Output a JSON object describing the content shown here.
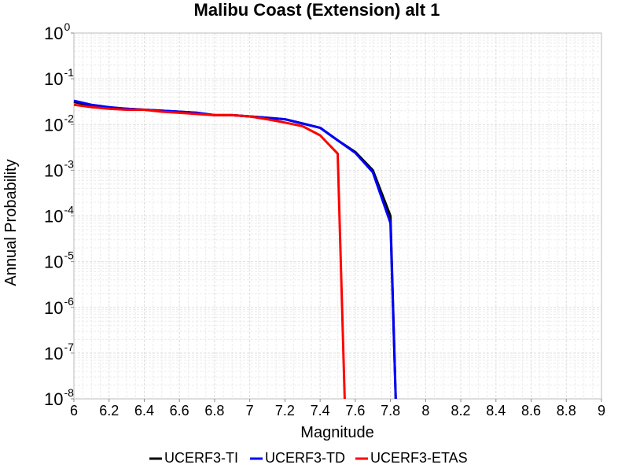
{
  "chart_data": {
    "type": "line",
    "title": "Malibu Coast (Extension) alt 1",
    "xlabel": "Magnitude",
    "ylabel": "Annual Probability",
    "xlim": [
      6,
      9
    ],
    "ylim": [
      1e-08,
      1
    ],
    "yscale": "log",
    "grid": true,
    "legend_position": "bottom",
    "x_ticks": [
      "6",
      "6.2",
      "6.4",
      "6.6",
      "6.8",
      "7",
      "7.2",
      "7.4",
      "7.6",
      "7.8",
      "8",
      "8.2",
      "8.4",
      "8.6",
      "8.8",
      "9"
    ],
    "y_ticks": [
      {
        "base": "10",
        "exp": "0",
        "value": 1
      },
      {
        "base": "10",
        "exp": "-1",
        "value": 0.1
      },
      {
        "base": "10",
        "exp": "-2",
        "value": 0.01
      },
      {
        "base": "10",
        "exp": "-3",
        "value": 0.001
      },
      {
        "base": "10",
        "exp": "-4",
        "value": 0.0001
      },
      {
        "base": "10",
        "exp": "-5",
        "value": 1e-05
      },
      {
        "base": "10",
        "exp": "-6",
        "value": 1e-06
      },
      {
        "base": "10",
        "exp": "-7",
        "value": 1e-07
      },
      {
        "base": "10",
        "exp": "-8",
        "value": 1e-08
      }
    ],
    "series": [
      {
        "name": "UCERF3-TI",
        "color": "#000000",
        "x": [
          6.0,
          6.1,
          6.2,
          6.3,
          6.4,
          6.5,
          6.6,
          6.7,
          6.8,
          6.9,
          7.0,
          7.1,
          7.2,
          7.3,
          7.4,
          7.5,
          7.6,
          7.7,
          7.8,
          7.83
        ],
        "y": [
          0.031,
          0.026,
          0.023,
          0.022,
          0.021,
          0.02,
          0.019,
          0.018,
          0.016,
          0.016,
          0.015,
          0.014,
          0.013,
          0.0105,
          0.0085,
          0.0045,
          0.0025,
          0.001,
          0.0001,
          1e-08
        ]
      },
      {
        "name": "UCERF3-TD",
        "color": "#0000ff",
        "x": [
          6.0,
          6.1,
          6.2,
          6.3,
          6.4,
          6.5,
          6.6,
          6.7,
          6.8,
          6.9,
          7.0,
          7.1,
          7.2,
          7.3,
          7.4,
          7.5,
          7.6,
          7.7,
          7.8,
          7.83
        ],
        "y": [
          0.033,
          0.027,
          0.024,
          0.022,
          0.021,
          0.02,
          0.019,
          0.018,
          0.016,
          0.016,
          0.015,
          0.014,
          0.013,
          0.0105,
          0.0085,
          0.0045,
          0.0024,
          0.0009,
          7e-05,
          1e-08
        ]
      },
      {
        "name": "UCERF3-ETAS",
        "color": "#ff0000",
        "x": [
          6.0,
          6.1,
          6.2,
          6.3,
          6.4,
          6.5,
          6.6,
          6.7,
          6.8,
          6.9,
          7.0,
          7.1,
          7.2,
          7.3,
          7.4,
          7.5,
          7.54
        ],
        "y": [
          0.027,
          0.024,
          0.022,
          0.021,
          0.021,
          0.019,
          0.018,
          0.017,
          0.016,
          0.016,
          0.015,
          0.013,
          0.011,
          0.0092,
          0.0058,
          0.0023,
          1e-08
        ]
      }
    ]
  }
}
